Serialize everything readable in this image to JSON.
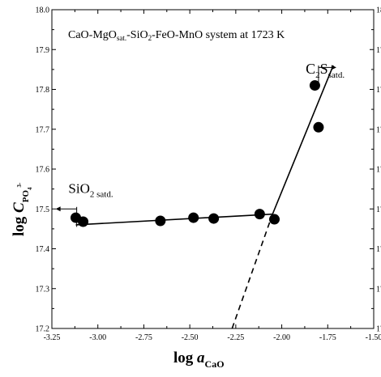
{
  "chart_data": {
    "type": "scatter",
    "title_parts": [
      "CaO-MgO",
      "sat.",
      "-SiO",
      "2",
      "-FeO-MnO system  at 1723 K"
    ],
    "xlabel_parts": [
      "log ",
      "a",
      "CaO"
    ],
    "ylabel_parts": [
      "log ",
      "C",
      "PO",
      "4",
      "3-"
    ],
    "xlim": [
      -3.25,
      -1.5
    ],
    "ylim": [
      17.2,
      18.0
    ],
    "x_ticks": [
      -3.25,
      -3.0,
      -2.75,
      -2.5,
      -2.25,
      -2.0,
      -1.75,
      -1.5
    ],
    "x_tick_labels": [
      "-3.25",
      "-3.00",
      "-2.75",
      "-2.50",
      "-2.25",
      "-2.00",
      "-1.75",
      "-1.50"
    ],
    "y_ticks": [
      17.2,
      17.3,
      17.4,
      17.5,
      17.6,
      17.7,
      17.8,
      17.9,
      18.0
    ],
    "y_tick_labels": [
      "17.2",
      "17.3",
      "17.4",
      "17.5",
      "17.6",
      "17.7",
      "17.8",
      "17.9",
      "18.0"
    ],
    "grid": false,
    "points": [
      {
        "x": -3.12,
        "y": 17.478
      },
      {
        "x": -3.08,
        "y": 17.468
      },
      {
        "x": -2.66,
        "y": 17.47
      },
      {
        "x": -2.48,
        "y": 17.478
      },
      {
        "x": -2.37,
        "y": 17.476
      },
      {
        "x": -2.12,
        "y": 17.487
      },
      {
        "x": -2.04,
        "y": 17.474
      },
      {
        "x": -1.82,
        "y": 17.81
      },
      {
        "x": -1.8,
        "y": 17.705
      }
    ],
    "fit_lines": [
      {
        "style": "solid",
        "x": [
          -3.12,
          -2.05
        ],
        "y": [
          17.46,
          17.487
        ]
      },
      {
        "style": "solid",
        "x": [
          -2.05,
          -1.72
        ],
        "y": [
          17.487,
          17.86
        ]
      },
      {
        "style": "dashed",
        "x": [
          -2.27,
          -2.05
        ],
        "y": [
          17.2,
          17.487
        ]
      }
    ],
    "annotations": {
      "sio2": {
        "main": "SiO",
        "sub": "2 satd.",
        "x": -3.16,
        "y": 17.54
      },
      "c2s": {
        "main": "C",
        "sub1": "2",
        "main2": "S",
        "sub2": "satd.",
        "x": -1.87,
        "y": 17.84
      }
    }
  }
}
